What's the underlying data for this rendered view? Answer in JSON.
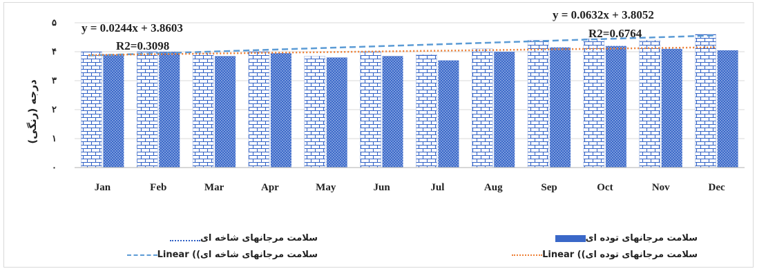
{
  "chart_data": {
    "type": "bar",
    "categories": [
      "Jan",
      "Feb",
      "Mar",
      "Apr",
      "May",
      "Jun",
      "Jul",
      "Aug",
      "Sep",
      "Oct",
      "Nov",
      "Dec"
    ],
    "ylabel": "درجه (رنگی)",
    "ylim": [
      0,
      5
    ],
    "yticks": [
      "۰",
      "۱",
      "۲",
      "۳",
      "۴",
      "۵"
    ],
    "grid": true,
    "legend_position": "bottom",
    "series": [
      {
        "name": "سلامت مرجانهای شاخه ای",
        "pattern": "brick",
        "color": "#2e5fc4",
        "values": [
          4.0,
          4.0,
          3.95,
          4.0,
          3.85,
          4.0,
          3.9,
          4.1,
          4.4,
          4.45,
          4.4,
          4.6
        ]
      },
      {
        "name": "سلامت مرجانهای توده ای",
        "pattern": "dots",
        "color": "#3a68c8",
        "values": [
          3.9,
          4.0,
          3.85,
          3.95,
          3.8,
          3.85,
          3.7,
          4.0,
          4.15,
          4.2,
          4.1,
          4.05
        ]
      }
    ],
    "trendlines": [
      {
        "name": "سلامت مرجانهای شاخه ای)) Linear",
        "for_series": 0,
        "style": "dashed",
        "color": "#5b9bd5",
        "equation": "y = 0.0632x + 3.8052",
        "r2": "R2=0.6764",
        "slope": 0.0632,
        "intercept": 3.8052
      },
      {
        "name": "سلامت مرجانهای توده ای)) Linear",
        "for_series": 1,
        "style": "dotted",
        "color": "#ed7d31",
        "equation": "y = 0.0244x + 3.8603",
        "r2": "R2=0.3098",
        "slope": 0.0244,
        "intercept": 3.8603
      }
    ]
  },
  "legend": [
    {
      "label": "سلامت مرجانهای شاخه ای",
      "kind": "brick"
    },
    {
      "label": "سلامت مرجانهای توده ای",
      "kind": "dots"
    },
    {
      "label": "سلامت مرجانهای شاخه ای)) Linear",
      "kind": "dashed"
    },
    {
      "label": "سلامت مرجانهای توده ای)) Linear",
      "kind": "dotted"
    }
  ]
}
